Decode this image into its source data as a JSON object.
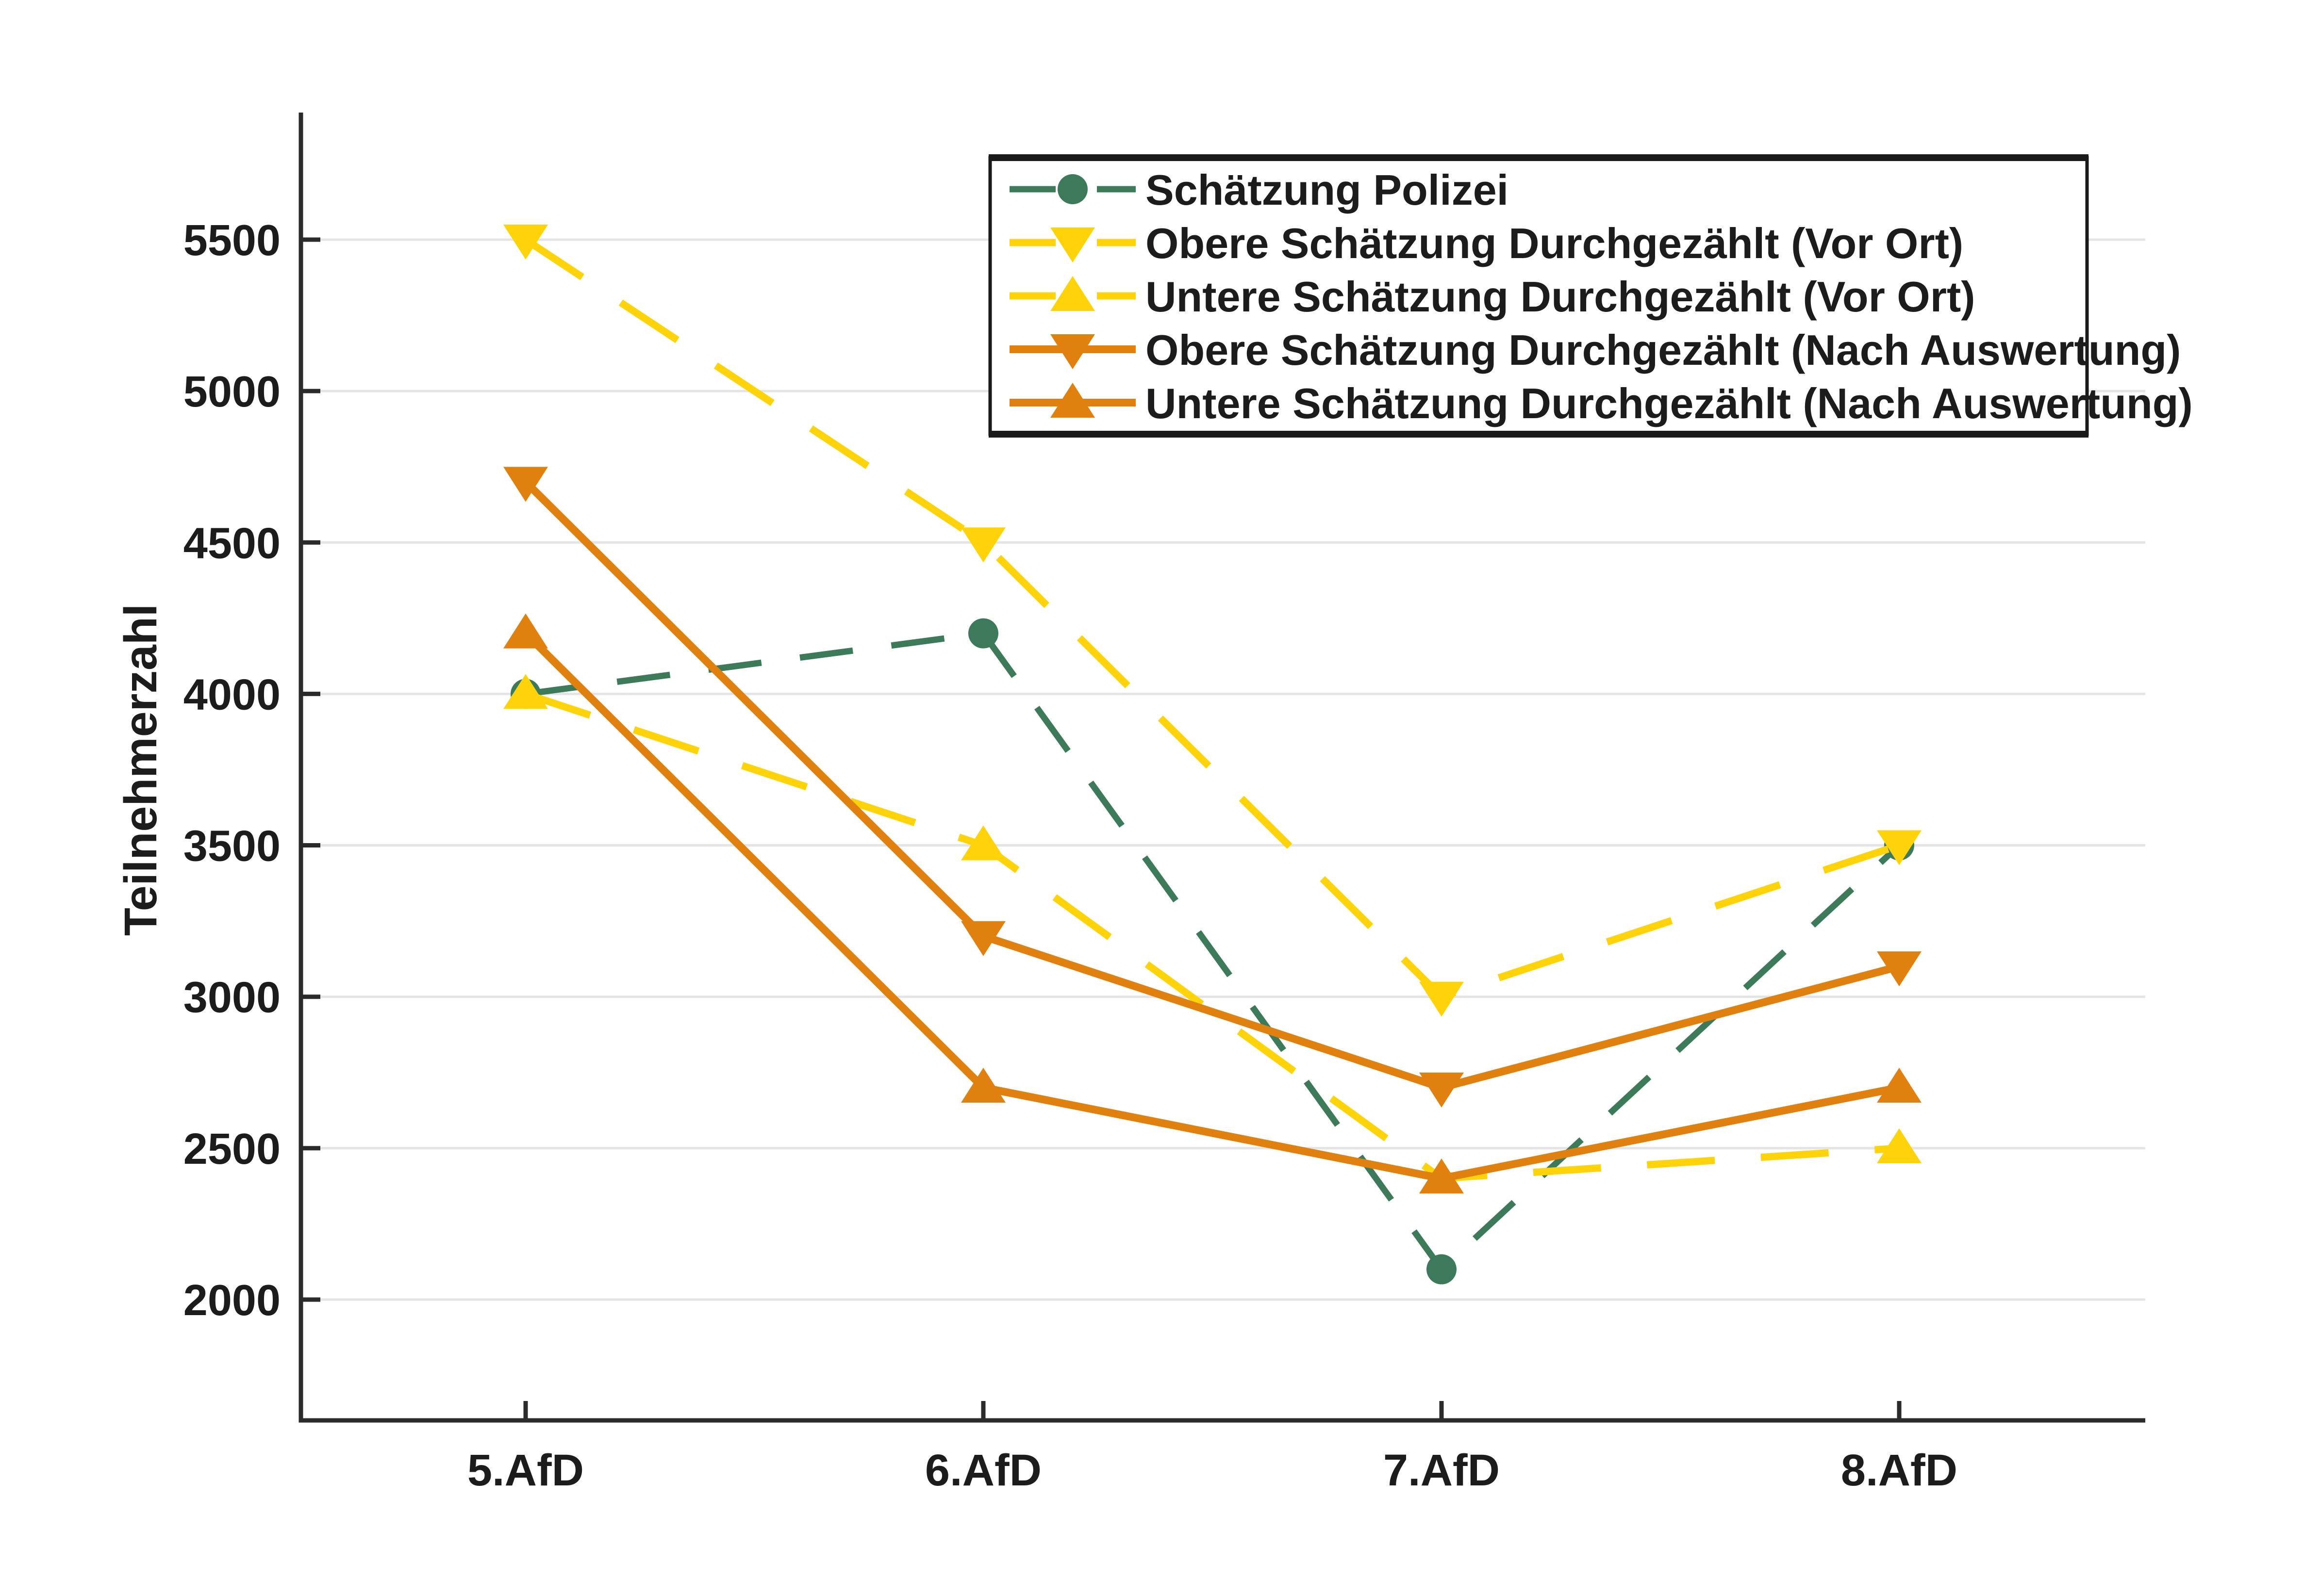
{
  "figure": {
    "background": "#FFFFFF"
  },
  "chart_data": {
    "type": "line",
    "title": "",
    "xlabel": "",
    "ylabel": "Teilnehmerzahl",
    "categories": [
      "5.AfD",
      "6.AfD",
      "7.AfD",
      "8.AfD"
    ],
    "yticks": [
      2000,
      2500,
      3000,
      3500,
      4000,
      4500,
      5000,
      5500
    ],
    "ytick_labels": [
      "2000",
      "2500",
      "3000",
      "3500",
      "4000",
      "4500",
      "5000",
      "5500"
    ],
    "ylim": [
      1600,
      5930
    ],
    "grid": "horizontal-only",
    "legend_position": "upper-center-inside",
    "series": [
      {
        "name": "Schätzung Polizei",
        "color": "#3D7A5A",
        "line_style": "dashed",
        "marker": "circle",
        "values": [
          4000,
          4200,
          2100,
          3500
        ]
      },
      {
        "name": "Obere Schätzung Durchgezählt (Vor Ort)",
        "color": "#FFD30A",
        "line_style": "dashed",
        "marker": "triangle-down",
        "values": [
          5500,
          4500,
          3000,
          3500
        ]
      },
      {
        "name": "Untere Schätzung Durchgezählt (Vor Ort)",
        "color": "#FFD30A",
        "line_style": "dashed",
        "marker": "triangle-up",
        "values": [
          4000,
          3500,
          2400,
          2500
        ]
      },
      {
        "name": "Obere Schätzung Durchgezählt (Nach Auswertung)",
        "color": "#DF800F",
        "line_style": "solid",
        "marker": "triangle-down",
        "values": [
          4700,
          3200,
          2700,
          3100
        ]
      },
      {
        "name": "Untere Schätzung Durchgezählt (Nach Auswertung)",
        "color": "#DF800F",
        "line_style": "solid",
        "marker": "triangle-up",
        "values": [
          4200,
          2700,
          2400,
          2700
        ]
      }
    ],
    "axis_color": "#2B2B2B",
    "grid_color": "#E4E4E4",
    "text_color": "#1C1C1C",
    "legend_border_color": "#1A1A1A",
    "legend_background": "#FFFFFF"
  }
}
